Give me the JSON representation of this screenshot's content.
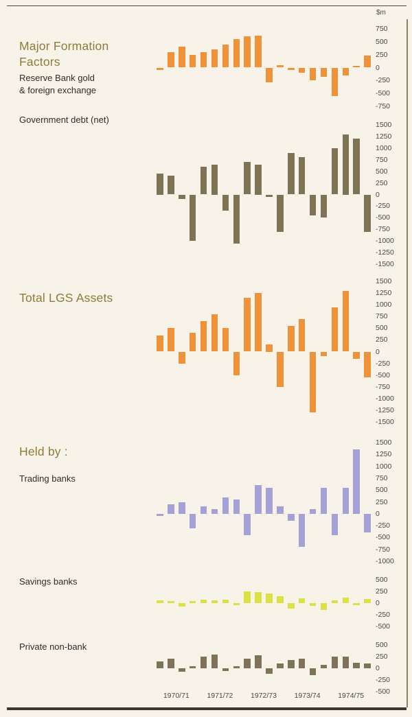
{
  "page": {
    "unit_label": "$m",
    "background": "#f7f3e8"
  },
  "colors": {
    "orange": "#f09238",
    "olive": "#7d7457",
    "lavender": "#a4a1d6",
    "yellow_green": "#d9e23e",
    "heading_text": "#8d7c3a",
    "body_text": "#2e2c26",
    "axis_text": "#474a3c"
  },
  "labels": {
    "major_title": "Major Formation\nFactors",
    "reserve_sub": "Reserve Bank gold\n& foreign exchange",
    "govt_debt": "Government debt (net)",
    "total_lgs": "Total LGS Assets",
    "held_by": "Held by :",
    "trading": "Trading banks",
    "savings": "Savings banks",
    "private_nonbank": "Private non-bank"
  },
  "x_axis": {
    "categories": [
      "1970/71",
      "1971/72",
      "1972/73",
      "1973/74",
      "1974/75"
    ],
    "bars_per_year": 4
  },
  "chart_data": [
    {
      "type": "bar",
      "section": "Major Formation Factors",
      "title": "Reserve Bank gold & foreign exchange",
      "unit": "$m",
      "color": "#f09238",
      "ylim": [
        -750,
        750
      ],
      "yticks": [
        750,
        500,
        250,
        0,
        -250,
        -500,
        -750
      ],
      "x_years": [
        "1970/71",
        "1971/72",
        "1972/73",
        "1973/74",
        "1974/75"
      ],
      "values": [
        -50,
        300,
        400,
        250,
        300,
        350,
        450,
        550,
        600,
        620,
        -280,
        50,
        -50,
        -100,
        -250,
        -180,
        -550,
        -150,
        30,
        230
      ]
    },
    {
      "type": "bar",
      "section": "Major Formation Factors",
      "title": "Government debt (net)",
      "unit": "$m",
      "color": "#7d7457",
      "ylim": [
        -1500,
        1500
      ],
      "yticks": [
        1500,
        1250,
        1000,
        750,
        500,
        250,
        0,
        -250,
        -500,
        -750,
        -1000,
        -1250,
        -1500
      ],
      "x_years": [
        "1970/71",
        "1971/72",
        "1972/73",
        "1973/74",
        "1974/75"
      ],
      "values": [
        450,
        400,
        -100,
        -1000,
        600,
        650,
        -350,
        -1050,
        700,
        650,
        -50,
        -800,
        900,
        800,
        -450,
        -500,
        1000,
        1300,
        1200,
        -800
      ]
    },
    {
      "type": "bar",
      "section": "",
      "title": "Total LGS Assets",
      "unit": "$m",
      "color": "#f09238",
      "ylim": [
        -1500,
        1500
      ],
      "yticks": [
        1500,
        1250,
        1000,
        750,
        500,
        250,
        0,
        -250,
        -500,
        -750,
        -1000,
        -1250,
        -1500
      ],
      "x_years": [
        "1970/71",
        "1971/72",
        "1972/73",
        "1973/74",
        "1974/75"
      ],
      "values": [
        350,
        500,
        -250,
        400,
        650,
        800,
        500,
        -500,
        1150,
        1250,
        150,
        -750,
        550,
        700,
        -1300,
        -100,
        950,
        1300,
        -150,
        -550
      ]
    },
    {
      "type": "bar",
      "section": "Held by :",
      "title": "Trading banks",
      "unit": "$m",
      "color": "#a4a1d6",
      "ylim": [
        -1000,
        1500
      ],
      "yticks": [
        1500,
        1250,
        1000,
        750,
        500,
        250,
        0,
        -250,
        -500,
        -750,
        -1000
      ],
      "x_years": [
        "1970/71",
        "1971/72",
        "1972/73",
        "1973/74",
        "1974/75"
      ],
      "values": [
        -50,
        200,
        250,
        -300,
        150,
        100,
        350,
        300,
        -450,
        600,
        550,
        150,
        -150,
        -700,
        100,
        550,
        -450,
        550,
        1350,
        -400
      ]
    },
    {
      "type": "bar",
      "section": "Held by :",
      "title": "Savings banks",
      "unit": "$m",
      "color": "#d9e23e",
      "ylim": [
        -500,
        500
      ],
      "yticks": [
        500,
        250,
        0,
        -250,
        -500
      ],
      "x_years": [
        "1970/71",
        "1971/72",
        "1972/73",
        "1973/74",
        "1974/75"
      ],
      "values": [
        60,
        50,
        -80,
        40,
        80,
        60,
        70,
        -40,
        250,
        230,
        200,
        150,
        -120,
        100,
        -60,
        -150,
        60,
        120,
        -40,
        90
      ]
    },
    {
      "type": "bar",
      "section": "Held by :",
      "title": "Private non-bank",
      "unit": "$m",
      "color": "#7d7457",
      "ylim": [
        -500,
        500
      ],
      "yticks": [
        500,
        250,
        0,
        -250,
        -500
      ],
      "x_years": [
        "1970/71",
        "1971/72",
        "1972/73",
        "1973/74",
        "1974/75"
      ],
      "values": [
        150,
        200,
        -80,
        40,
        250,
        300,
        -60,
        40,
        200,
        280,
        -120,
        100,
        180,
        200,
        -150,
        80,
        250,
        250,
        120,
        100
      ]
    }
  ]
}
